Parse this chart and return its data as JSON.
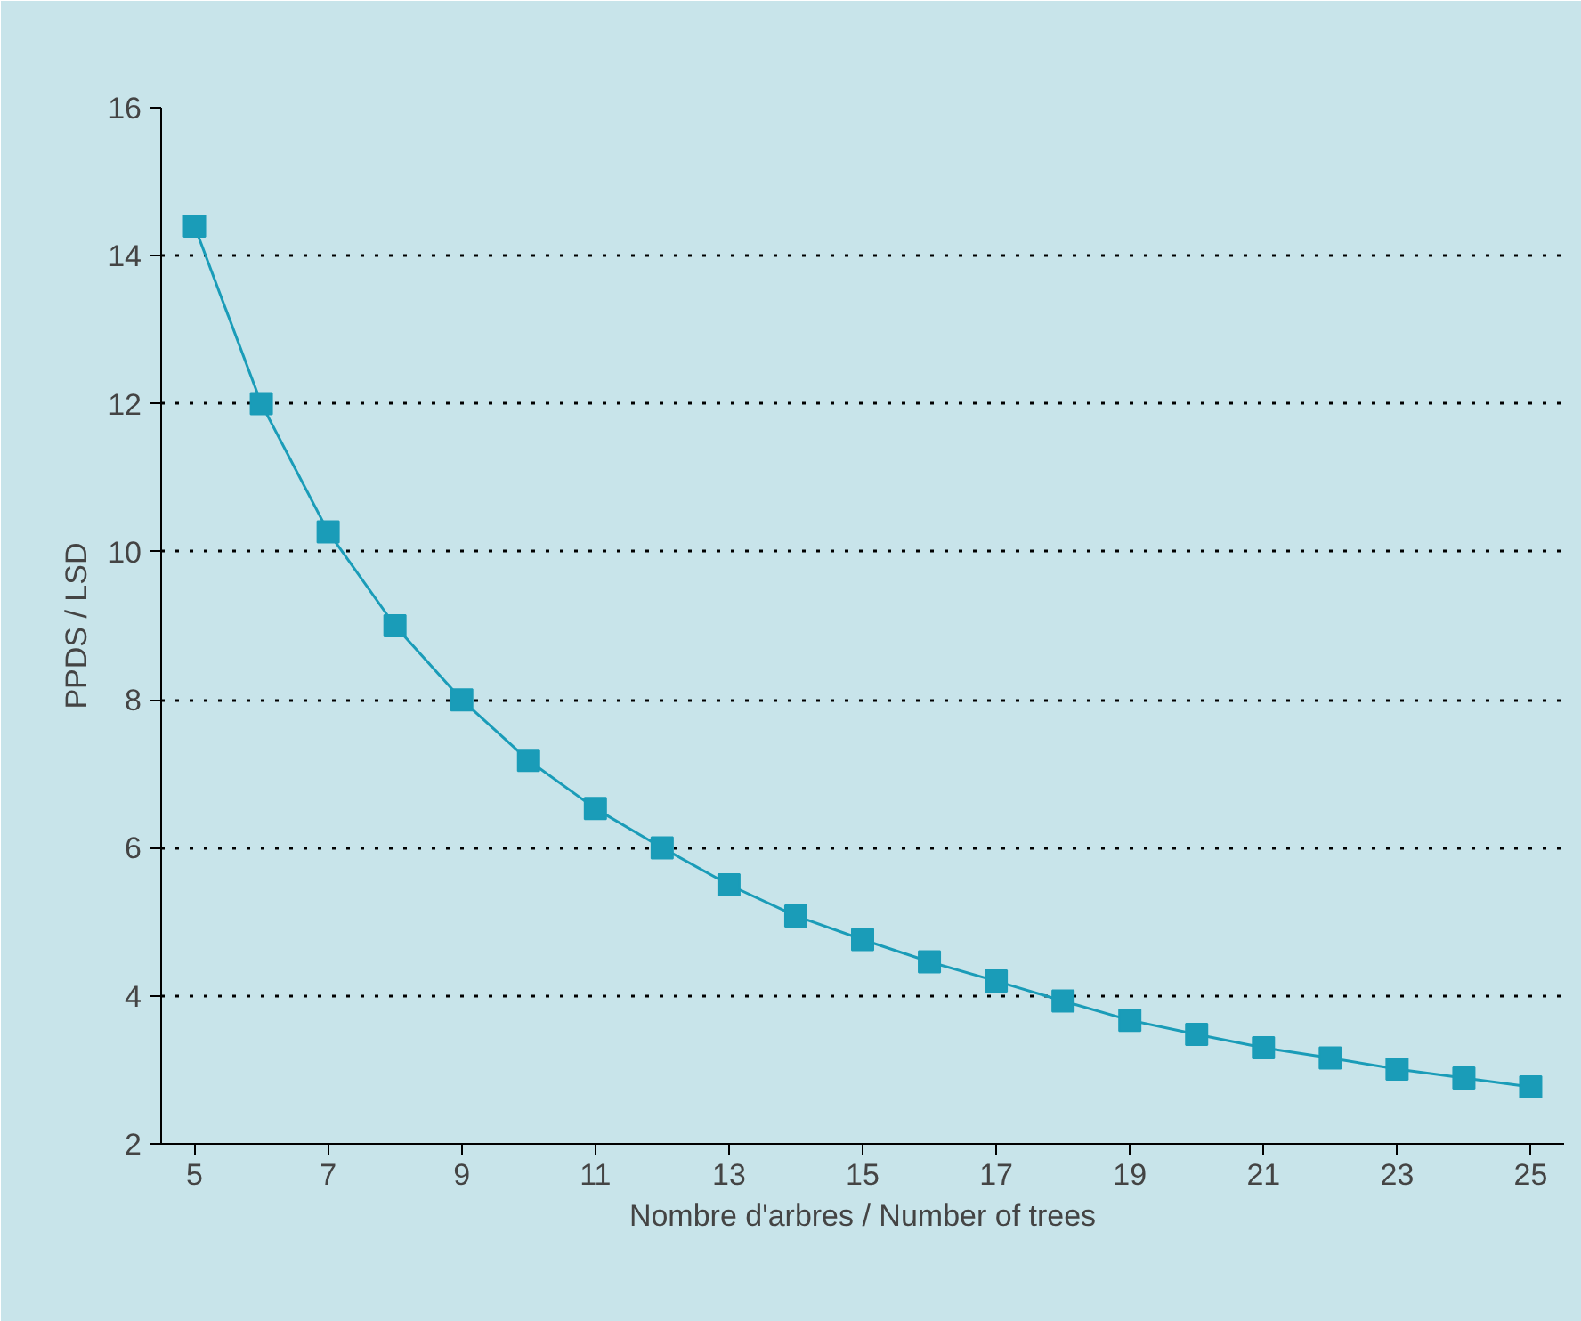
{
  "chart_data": {
    "type": "line",
    "xlabel": "Nombre d'arbres / Number of trees",
    "ylabel": "PPDS / LSD",
    "x": [
      5,
      6,
      7,
      8,
      9,
      10,
      11,
      12,
      13,
      14,
      15,
      16,
      17,
      18,
      19,
      20,
      21,
      22,
      23,
      24,
      25
    ],
    "series": [
      {
        "color": "#1a9cb8",
        "values": [
          14.4,
          12.0,
          10.27,
          9.0,
          8.0,
          7.18,
          6.53,
          6.0,
          5.5,
          5.08,
          4.76,
          4.46,
          4.2,
          3.93,
          3.67,
          3.48,
          3.3,
          3.16,
          3.01,
          2.89,
          2.77
        ]
      }
    ],
    "xlim": [
      4.5,
      25.5
    ],
    "ylim": [
      2,
      16
    ],
    "xticks": [
      5,
      7,
      9,
      11,
      13,
      15,
      17,
      19,
      21,
      23,
      25
    ],
    "yticks": [
      2,
      4,
      6,
      8,
      10,
      12,
      14,
      16
    ],
    "grid": "y",
    "marker": "square",
    "line_style": "solid"
  }
}
